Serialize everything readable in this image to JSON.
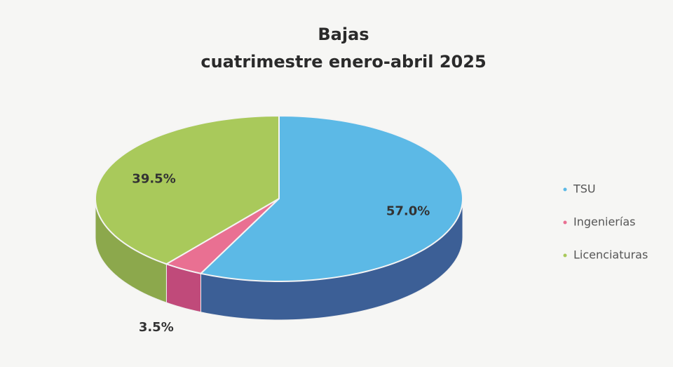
{
  "chart_data": {
    "type": "pie3d",
    "title": [
      "Bajas",
      "cuatrimestre enero-abril 2025"
    ],
    "categories": [
      "TSU",
      "Ingenierías",
      "Licenciaturas"
    ],
    "values": [
      57.0,
      3.5,
      39.5
    ],
    "value_labels": [
      "57.0%",
      "3.5%",
      "39.5%"
    ],
    "colors": [
      "#5cb9e6",
      "#e97092",
      "#a9c95b"
    ],
    "side_colors": [
      "#3c5f96",
      "#c04a7a",
      "#8ca84c"
    ],
    "legend": "right"
  }
}
